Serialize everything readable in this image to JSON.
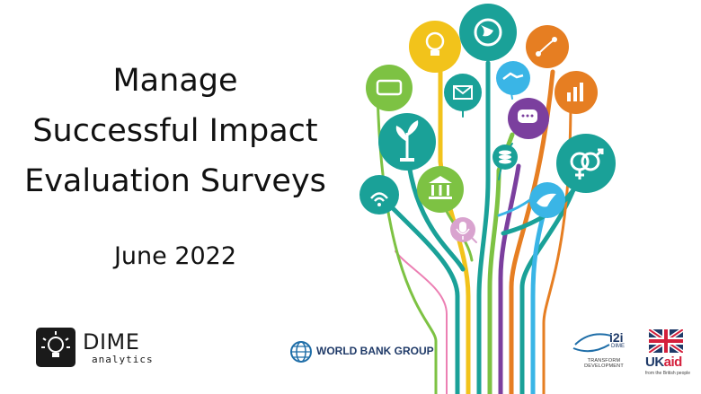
{
  "slide": {
    "title_lines": [
      "Manage",
      "Successful Impact",
      "Evaluation Surveys"
    ],
    "date": "June 2022"
  },
  "logos": {
    "dime": {
      "name": "DIME",
      "subtitle": "analytics"
    },
    "world_bank": {
      "name": "WORLD BANK GROUP"
    },
    "i2i": {
      "name": "i2i",
      "sub_name": "DIME",
      "tagline": "TRANSFORM DEVELOPMENT"
    },
    "ukaid": {
      "uk": "UK",
      "aid": "aid",
      "tagline": "from the British people"
    }
  },
  "tree_icons": [
    {
      "name": "globe-icon",
      "color": "#1aa198"
    },
    {
      "name": "lightbulb-icon",
      "color": "#f2c31b"
    },
    {
      "name": "route-icon",
      "color": "#e67e22"
    },
    {
      "name": "handshake-icon",
      "color": "#3ab5e6"
    },
    {
      "name": "phone-icon",
      "color": "#7dc243"
    },
    {
      "name": "envelope-icon",
      "color": "#1aa198"
    },
    {
      "name": "bar-chart-icon",
      "color": "#e67e22"
    },
    {
      "name": "chat-icon",
      "color": "#7b3f9e"
    },
    {
      "name": "plant-icon",
      "color": "#1aa198"
    },
    {
      "name": "coins-icon",
      "color": "#1aa198"
    },
    {
      "name": "gender-icon",
      "color": "#1aa198"
    },
    {
      "name": "bank-icon",
      "color": "#7dc243"
    },
    {
      "name": "wifi-icon",
      "color": "#1aa198"
    },
    {
      "name": "dove-icon",
      "color": "#3ab5e6"
    },
    {
      "name": "microphone-icon",
      "color": "#d9a3cf"
    }
  ]
}
